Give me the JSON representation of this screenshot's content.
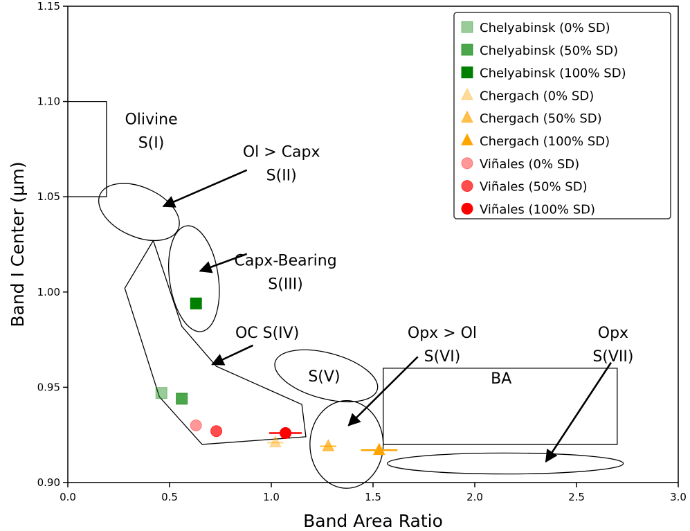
{
  "chart_data": {
    "type": "scatter",
    "title": "",
    "xlabel": "Band Area Ratio",
    "ylabel": "Band I Center (μm)",
    "xlim": [
      0.0,
      3.0
    ],
    "ylim": [
      0.9,
      1.15
    ],
    "xticks": [
      "0.0",
      "0.5",
      "1.0",
      "1.5",
      "2.0",
      "2.5",
      "3.0"
    ],
    "xtick_values": [
      0.0,
      0.5,
      1.0,
      1.5,
      2.0,
      2.5,
      3.0
    ],
    "yticks": [
      "0.90",
      "0.95",
      "1.00",
      "1.05",
      "1.10",
      "1.15"
    ],
    "ytick_values": [
      0.9,
      0.95,
      1.0,
      1.05,
      1.1,
      1.15
    ],
    "grid": false,
    "legend_position": "top-right",
    "series": [
      {
        "name": "Chelyabinsk (0% SD)",
        "marker": "square",
        "color": "#008000",
        "opacity": 0.4,
        "points": [
          {
            "x": 0.46,
            "y": 0.947
          }
        ]
      },
      {
        "name": "Chelyabinsk (50% SD)",
        "marker": "square",
        "color": "#008000",
        "opacity": 0.7,
        "points": [
          {
            "x": 0.56,
            "y": 0.944
          }
        ]
      },
      {
        "name": "Chelyabinsk (100% SD)",
        "marker": "square",
        "color": "#008000",
        "opacity": 1.0,
        "points": [
          {
            "x": 0.63,
            "y": 0.994
          }
        ]
      },
      {
        "name": "Chergach (0% SD)",
        "marker": "triangle",
        "color": "#ffa500",
        "opacity": 0.4,
        "points": [
          {
            "x": 1.02,
            "y": 0.921,
            "xerr": 0.04
          }
        ]
      },
      {
        "name": "Chergach (50% SD)",
        "marker": "triangle",
        "color": "#ffa500",
        "opacity": 0.7,
        "points": [
          {
            "x": 1.28,
            "y": 0.919,
            "xerr": 0.04
          }
        ]
      },
      {
        "name": "Chergach (100% SD)",
        "marker": "triangle",
        "color": "#ffa500",
        "opacity": 1.0,
        "points": [
          {
            "x": 1.53,
            "y": 0.917,
            "xerr": 0.09
          }
        ]
      },
      {
        "name": "Viñales (0% SD)",
        "marker": "circle",
        "color": "#ff0000",
        "opacity": 0.4,
        "points": [
          {
            "x": 0.63,
            "y": 0.93
          }
        ]
      },
      {
        "name": "Viñales (50% SD)",
        "marker": "circle",
        "color": "#ff0000",
        "opacity": 0.7,
        "points": [
          {
            "x": 0.73,
            "y": 0.927
          }
        ]
      },
      {
        "name": "Viñales (100% SD)",
        "marker": "circle",
        "color": "#ff0000",
        "opacity": 1.0,
        "points": [
          {
            "x": 1.07,
            "y": 0.926,
            "xerr": 0.08
          }
        ]
      }
    ],
    "regions": [
      {
        "name": "olivine-box",
        "shape": "polyline",
        "points": [
          [
            0.0,
            1.1
          ],
          [
            0.19,
            1.1
          ],
          [
            0.19,
            1.05
          ],
          [
            0.0,
            1.05
          ]
        ]
      },
      {
        "name": "s2-ellipse",
        "shape": "ellipse",
        "cx": 0.35,
        "cy": 1.042,
        "rx": 0.21,
        "ry": 0.013,
        "rotate": 24
      },
      {
        "name": "s3-ellipse",
        "shape": "ellipse",
        "cx": 0.62,
        "cy": 1.007,
        "rx": 0.12,
        "ry": 0.028,
        "rotate": -8
      },
      {
        "name": "s4-polygon",
        "shape": "polygon",
        "points": [
          [
            0.42,
            1.027
          ],
          [
            0.28,
            1.002
          ],
          [
            0.45,
            0.945
          ],
          [
            0.66,
            0.92
          ],
          [
            1.17,
            0.924
          ],
          [
            1.15,
            0.941
          ],
          [
            0.73,
            0.961
          ],
          [
            0.56,
            0.982
          ]
        ]
      },
      {
        "name": "s5-ellipse",
        "shape": "ellipse",
        "cx": 1.27,
        "cy": 0.956,
        "rx": 0.26,
        "ry": 0.012,
        "rotate": 15
      },
      {
        "name": "s6-circle",
        "shape": "ellipse",
        "cx": 1.37,
        "cy": 0.92,
        "rx": 0.18,
        "ry": 0.023,
        "rotate": 0
      },
      {
        "name": "ba-box",
        "shape": "polygon",
        "points": [
          [
            1.55,
            0.96
          ],
          [
            2.7,
            0.96
          ],
          [
            2.7,
            0.92
          ],
          [
            1.55,
            0.92
          ]
        ]
      },
      {
        "name": "s7-ellipse",
        "shape": "ellipse",
        "cx": 2.15,
        "cy": 0.91,
        "rx": 0.58,
        "ry": 0.0055,
        "rotate": 0
      }
    ],
    "annotations": [
      {
        "lines": [
          "Olivine",
          "S(I)"
        ],
        "x": 0.41,
        "y": 1.088
      },
      {
        "lines": [
          "Ol > Capx",
          "S(II)"
        ],
        "x": 1.05,
        "y": 1.071
      },
      {
        "lines": [
          "Capx-Bearing",
          "S(III)"
        ],
        "x": 1.07,
        "y": 1.014
      },
      {
        "lines": [
          "OC S(IV)"
        ],
        "x": 0.98,
        "y": 0.976
      },
      {
        "lines": [
          "S(V)"
        ],
        "x": 1.26,
        "y": 0.953
      },
      {
        "lines": [
          "BA"
        ],
        "x": 2.13,
        "y": 0.952
      },
      {
        "lines": [
          "Opx > Ol",
          "S(VI)"
        ],
        "x": 1.84,
        "y": 0.976
      },
      {
        "lines": [
          "Opx",
          "S(VII)"
        ],
        "x": 2.68,
        "y": 0.976
      }
    ],
    "arrows": [
      {
        "name": "arrow-s2",
        "from": [
          0.88,
          1.064
        ],
        "to": [
          0.47,
          1.045
        ]
      },
      {
        "name": "arrow-s3",
        "from": [
          0.88,
          1.02
        ],
        "to": [
          0.65,
          1.011
        ]
      },
      {
        "name": "arrow-s4",
        "from": [
          0.91,
          0.972
        ],
        "to": [
          0.71,
          0.962
        ]
      },
      {
        "name": "arrow-s6",
        "from": [
          1.72,
          0.966
        ],
        "to": [
          1.38,
          0.93
        ]
      },
      {
        "name": "arrow-s7",
        "from": [
          2.67,
          0.963
        ],
        "to": [
          2.35,
          0.911
        ]
      }
    ]
  }
}
